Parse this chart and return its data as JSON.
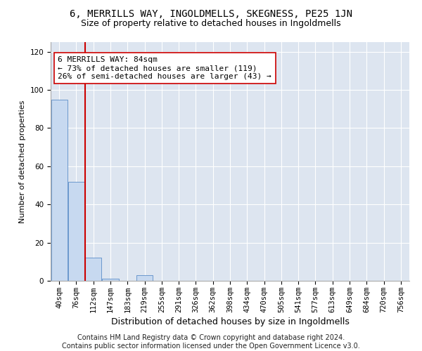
{
  "title1": "6, MERRILLS WAY, INGOLDMELLS, SKEGNESS, PE25 1JN",
  "title2": "Size of property relative to detached houses in Ingoldmells",
  "xlabel": "Distribution of detached houses by size in Ingoldmells",
  "ylabel": "Number of detached properties",
  "categories": [
    "40sqm",
    "76sqm",
    "112sqm",
    "147sqm",
    "183sqm",
    "219sqm",
    "255sqm",
    "291sqm",
    "326sqm",
    "362sqm",
    "398sqm",
    "434sqm",
    "470sqm",
    "505sqm",
    "541sqm",
    "577sqm",
    "613sqm",
    "649sqm",
    "684sqm",
    "720sqm",
    "756sqm"
  ],
  "bar_values": [
    95,
    52,
    12,
    1,
    0,
    3,
    0,
    0,
    0,
    0,
    0,
    0,
    0,
    0,
    0,
    0,
    0,
    0,
    0,
    0,
    0
  ],
  "bar_color": "#c7d9f0",
  "bar_edge_color": "#5b8dc8",
  "ylim": [
    0,
    125
  ],
  "yticks": [
    0,
    20,
    40,
    60,
    80,
    100,
    120
  ],
  "property_line_x": 1.5,
  "property_line_color": "#cc0000",
  "annotation_box_text": "6 MERRILLS WAY: 84sqm\n← 73% of detached houses are smaller (119)\n26% of semi-detached houses are larger (43) →",
  "annotation_box_color": "#ffffff",
  "annotation_box_edge_color": "#cc0000",
  "background_color": "#dde5f0",
  "footer_text": "Contains HM Land Registry data © Crown copyright and database right 2024.\nContains public sector information licensed under the Open Government Licence v3.0.",
  "title1_fontsize": 10,
  "title2_fontsize": 9,
  "xlabel_fontsize": 9,
  "ylabel_fontsize": 8,
  "annotation_fontsize": 8,
  "footer_fontsize": 7,
  "tick_fontsize": 7.5
}
